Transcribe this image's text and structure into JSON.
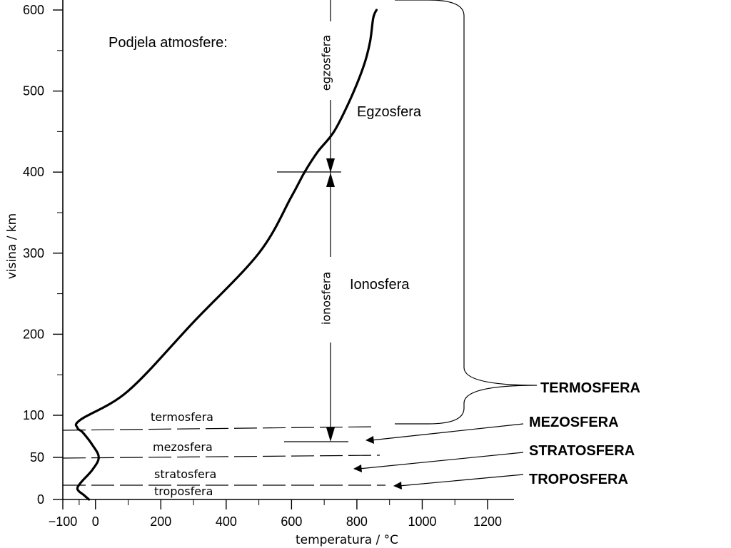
{
  "chart_data": {
    "type": "line",
    "title": "Podjela atmosfere:",
    "xlabel": "temperatura / °C",
    "ylabel": "visina / km",
    "xlim": [
      -100,
      1300
    ],
    "ylim": [
      0,
      600
    ],
    "x_ticks": [
      "−100",
      "0",
      "200",
      "400",
      "600",
      "800",
      "1000",
      "1200"
    ],
    "y_ticks": [
      "0",
      "50",
      "100",
      "200",
      "300",
      "400",
      "500",
      "600"
    ],
    "x_tick_values": [
      -100,
      0,
      200,
      400,
      600,
      800,
      1000,
      1200
    ],
    "y_tick_values": [
      0,
      50,
      100,
      200,
      300,
      400,
      500,
      600
    ],
    "series": [
      {
        "x": [
          -20,
          -35,
          -55,
          -45,
          -10,
          10,
          -10,
          -40,
          -55,
          -45,
          100,
          300,
          500,
          600,
          640,
          680,
          730,
          780,
          820,
          840,
          850,
          860
        ],
        "y": [
          0,
          5,
          12,
          20,
          35,
          50,
          65,
          80,
          85,
          95,
          130,
          215,
          300,
          370,
          400,
          425,
          450,
          490,
          530,
          560,
          590,
          600
        ]
      }
    ],
    "boundaries_km": [
      12,
      50,
      85
    ],
    "ionosphere_range_km": [
      70,
      400
    ],
    "exosphere_start_km": 400,
    "layer_labels": [
      "troposfera",
      "stratosfera",
      "mezosfera",
      "termosfera"
    ],
    "vertical_labels": [
      "egzosfera",
      "ionosfera"
    ],
    "region_labels": [
      "Egzosfera",
      "Ionosfera"
    ],
    "callouts": [
      "TERMOSFERA",
      "MEZOSFERA",
      "STRATOSFERA",
      "TROPOSFERA"
    ],
    "grid": false,
    "colors": {
      "ink": "#000000"
    }
  }
}
